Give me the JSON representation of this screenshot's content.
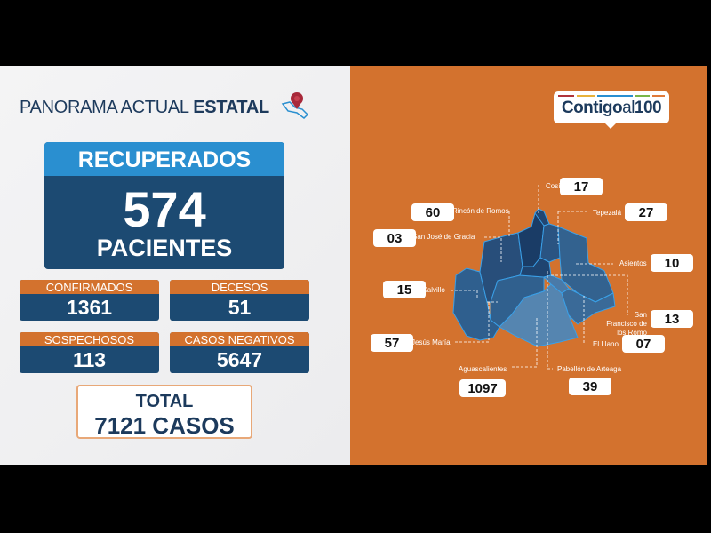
{
  "header": {
    "title_light": "PANORAMA ACTUAL",
    "title_bold": "ESTATAL"
  },
  "recuperados": {
    "label": "RECUPERADOS",
    "value": "574",
    "unit": "PACIENTES"
  },
  "stats": [
    {
      "label": "CONFIRMADOS",
      "value": "1361"
    },
    {
      "label": "DECESOS",
      "value": "51"
    },
    {
      "label": "SOSPECHOSOS",
      "value": "113"
    },
    {
      "label": "CASOS NEGATIVOS",
      "value": "5647"
    }
  ],
  "total": {
    "label": "TOTAL",
    "value": "7121 CASOS"
  },
  "logo": {
    "bold": "Contigo",
    "light": "al",
    "num": "100",
    "bar_colors": [
      "#b0343a",
      "#e8b23a",
      "#2a8fd0",
      "#7ab648",
      "#e07a3a"
    ]
  },
  "colors": {
    "orange": "#d3722e",
    "navy": "#1c4a72",
    "blue": "#2a8fd0"
  },
  "municipios": [
    {
      "name": "Cosío",
      "value": "17"
    },
    {
      "name": "Rincón de Romos",
      "value": "60"
    },
    {
      "name": "Tepezalá",
      "value": "27"
    },
    {
      "name": "San José de Gracia",
      "value": "03"
    },
    {
      "name": "Asientos",
      "value": "10"
    },
    {
      "name": "Calvillo",
      "value": "15"
    },
    {
      "name": "San Francisco de los Romo",
      "value": "13"
    },
    {
      "name": "Jesús María",
      "value": "57"
    },
    {
      "name": "El Llano",
      "value": "07"
    },
    {
      "name": "Aguascalientes",
      "value": "1097"
    },
    {
      "name": "Pabellón de Arteaga",
      "value": "39"
    }
  ]
}
